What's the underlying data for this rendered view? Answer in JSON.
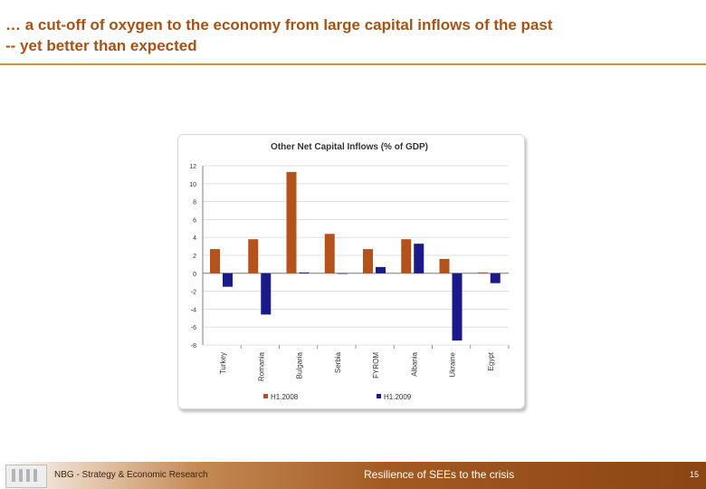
{
  "slide": {
    "title_line1": "… a cut-off of oxygen to the economy from large capital inflows of the past",
    "title_line2": "-- yet better than expected"
  },
  "footer": {
    "left_text": "NBG - Strategy & Economic Research",
    "center_text": "Resilience of SEEs to the crisis",
    "page_number": "15"
  },
  "colors": {
    "title": "#a55316",
    "series_2008": "#b5521b",
    "series_2009": "#1a1a8a"
  },
  "chart_data": {
    "type": "bar",
    "title": "Other Net Capital Inflows (% of GDP)",
    "categories": [
      "Turkey",
      "Romania",
      "Bulgaria",
      "Serbia",
      "FYROM",
      "Albania",
      "Ukraine",
      "Egypt"
    ],
    "series": [
      {
        "name": "H1.2008",
        "values": [
          2.7,
          3.8,
          11.3,
          4.4,
          2.7,
          3.8,
          1.6,
          0.1
        ]
      },
      {
        "name": "H1.2009",
        "values": [
          -1.5,
          -4.6,
          0.1,
          0.0,
          0.7,
          3.3,
          -7.5,
          -1.1
        ]
      }
    ],
    "ylim": [
      -8,
      12
    ],
    "yticks": [
      -8,
      -6,
      -4,
      -2,
      0,
      2,
      4,
      6,
      8,
      10,
      12
    ],
    "xlabel": "",
    "ylabel": "",
    "legend_position": "bottom"
  }
}
